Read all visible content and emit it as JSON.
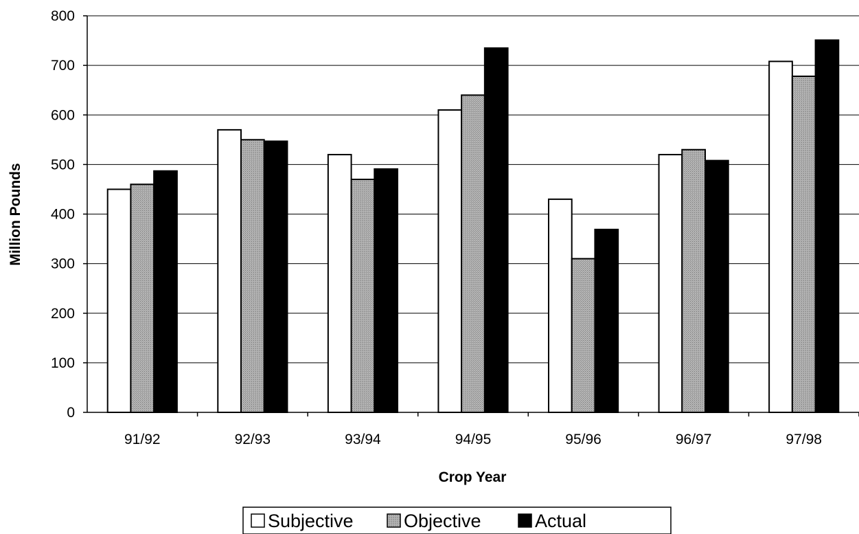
{
  "chart_data": {
    "type": "bar",
    "title": "",
    "xlabel": "Crop Year",
    "ylabel": "Million Pounds",
    "ylim": [
      0,
      800
    ],
    "yticks": [
      0,
      100,
      200,
      300,
      400,
      500,
      600,
      700,
      800
    ],
    "grid": true,
    "legend_position": "bottom",
    "categories": [
      "91/92",
      "92/93",
      "93/94",
      "94/95",
      "95/96",
      "96/97",
      "97/98"
    ],
    "series": [
      {
        "name": "Subjective",
        "color": "#ffffff",
        "values": [
          450,
          570,
          520,
          610,
          430,
          520,
          708
        ]
      },
      {
        "name": "Objective",
        "color": "#a8a8a8",
        "values": [
          460,
          550,
          470,
          640,
          310,
          530,
          678
        ]
      },
      {
        "name": "Actual",
        "color": "#000000",
        "values": [
          487,
          547,
          491,
          735,
          369,
          508,
          751
        ]
      }
    ]
  }
}
